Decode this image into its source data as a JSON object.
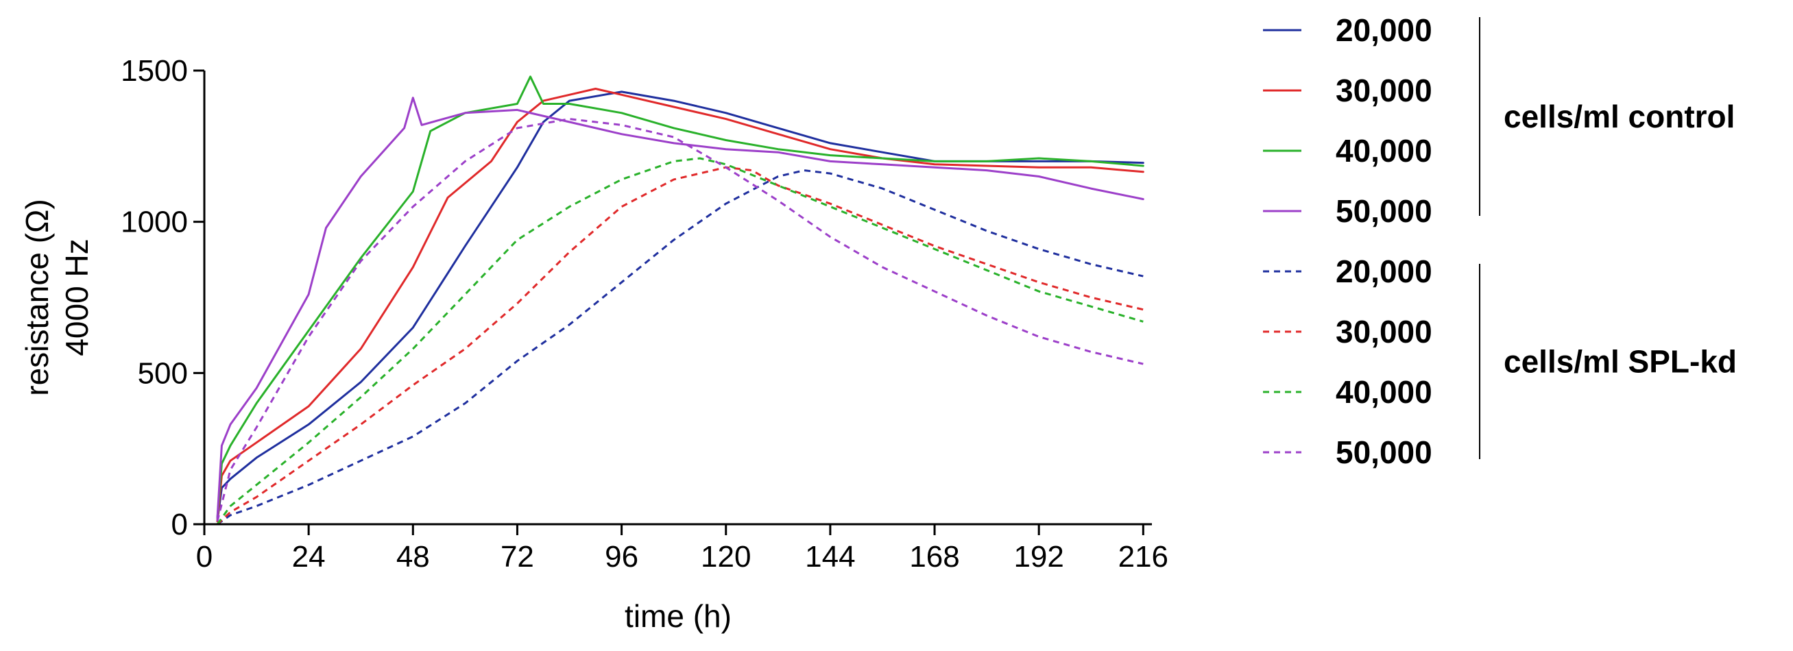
{
  "chart_data": {
    "type": "line",
    "xlabel": "time (h)",
    "ylabel": [
      "resistance (Ω)",
      "4000 Hz"
    ],
    "xlim": [
      0,
      218
    ],
    "ylim": [
      0,
      1500
    ],
    "xticks": [
      0,
      24,
      48,
      72,
      96,
      120,
      144,
      168,
      192,
      216
    ],
    "yticks": [
      0,
      500,
      1000,
      1500
    ],
    "grid": false,
    "legend_placement": "right",
    "legend_groups": [
      {
        "label": "cells/ml control",
        "series": [
          0,
          1,
          2,
          3
        ]
      },
      {
        "label": "cells/ml SPL-kd",
        "series": [
          4,
          5,
          6,
          7
        ]
      }
    ],
    "series": [
      {
        "name": "20,000",
        "color": "#1f2f9e",
        "style": "solid",
        "points": [
          [
            3,
            10
          ],
          [
            4,
            120
          ],
          [
            6,
            150
          ],
          [
            12,
            220
          ],
          [
            24,
            330
          ],
          [
            36,
            470
          ],
          [
            48,
            650
          ],
          [
            60,
            920
          ],
          [
            72,
            1180
          ],
          [
            78,
            1330
          ],
          [
            84,
            1400
          ],
          [
            96,
            1430
          ],
          [
            108,
            1400
          ],
          [
            120,
            1360
          ],
          [
            132,
            1310
          ],
          [
            144,
            1260
          ],
          [
            156,
            1230
          ],
          [
            168,
            1200
          ],
          [
            180,
            1200
          ],
          [
            192,
            1200
          ],
          [
            204,
            1200
          ],
          [
            216,
            1195
          ]
        ]
      },
      {
        "name": "30,000",
        "color": "#e0292a",
        "style": "solid",
        "points": [
          [
            3,
            10
          ],
          [
            4,
            160
          ],
          [
            6,
            210
          ],
          [
            12,
            270
          ],
          [
            24,
            390
          ],
          [
            36,
            580
          ],
          [
            48,
            850
          ],
          [
            56,
            1080
          ],
          [
            66,
            1200
          ],
          [
            72,
            1330
          ],
          [
            78,
            1400
          ],
          [
            84,
            1420
          ],
          [
            90,
            1440
          ],
          [
            96,
            1420
          ],
          [
            108,
            1380
          ],
          [
            120,
            1340
          ],
          [
            132,
            1290
          ],
          [
            144,
            1240
          ],
          [
            156,
            1210
          ],
          [
            168,
            1190
          ],
          [
            180,
            1185
          ],
          [
            192,
            1180
          ],
          [
            204,
            1180
          ],
          [
            216,
            1165
          ]
        ]
      },
      {
        "name": "40,000",
        "color": "#29b12a",
        "style": "solid",
        "points": [
          [
            3,
            20
          ],
          [
            4,
            200
          ],
          [
            6,
            260
          ],
          [
            12,
            400
          ],
          [
            24,
            640
          ],
          [
            36,
            880
          ],
          [
            48,
            1100
          ],
          [
            52,
            1300
          ],
          [
            60,
            1360
          ],
          [
            72,
            1390
          ],
          [
            75,
            1480
          ],
          [
            78,
            1390
          ],
          [
            84,
            1390
          ],
          [
            96,
            1360
          ],
          [
            108,
            1310
          ],
          [
            120,
            1270
          ],
          [
            132,
            1240
          ],
          [
            144,
            1220
          ],
          [
            156,
            1210
          ],
          [
            168,
            1200
          ],
          [
            180,
            1200
          ],
          [
            192,
            1210
          ],
          [
            204,
            1200
          ],
          [
            216,
            1185
          ]
        ]
      },
      {
        "name": "50,000",
        "color": "#9c3fc9",
        "style": "solid",
        "points": [
          [
            3,
            20
          ],
          [
            4,
            260
          ],
          [
            6,
            330
          ],
          [
            12,
            450
          ],
          [
            24,
            760
          ],
          [
            28,
            980
          ],
          [
            36,
            1150
          ],
          [
            46,
            1310
          ],
          [
            48,
            1410
          ],
          [
            50,
            1320
          ],
          [
            60,
            1360
          ],
          [
            72,
            1370
          ],
          [
            84,
            1330
          ],
          [
            96,
            1290
          ],
          [
            108,
            1260
          ],
          [
            120,
            1240
          ],
          [
            132,
            1230
          ],
          [
            144,
            1200
          ],
          [
            156,
            1190
          ],
          [
            168,
            1180
          ],
          [
            180,
            1170
          ],
          [
            192,
            1150
          ],
          [
            204,
            1110
          ],
          [
            216,
            1075
          ]
        ]
      },
      {
        "name": "20,000",
        "color": "#1f2f9e",
        "style": "dashed",
        "points": [
          [
            3,
            0
          ],
          [
            6,
            30
          ],
          [
            12,
            60
          ],
          [
            24,
            130
          ],
          [
            36,
            210
          ],
          [
            48,
            290
          ],
          [
            60,
            400
          ],
          [
            72,
            540
          ],
          [
            84,
            660
          ],
          [
            96,
            800
          ],
          [
            108,
            940
          ],
          [
            120,
            1060
          ],
          [
            132,
            1150
          ],
          [
            138,
            1170
          ],
          [
            144,
            1160
          ],
          [
            156,
            1110
          ],
          [
            168,
            1040
          ],
          [
            180,
            970
          ],
          [
            192,
            910
          ],
          [
            204,
            860
          ],
          [
            216,
            820
          ]
        ]
      },
      {
        "name": "30,000",
        "color": "#e0292a",
        "style": "dashed",
        "points": [
          [
            3,
            0
          ],
          [
            6,
            40
          ],
          [
            12,
            90
          ],
          [
            24,
            210
          ],
          [
            36,
            330
          ],
          [
            48,
            460
          ],
          [
            60,
            580
          ],
          [
            72,
            730
          ],
          [
            84,
            900
          ],
          [
            96,
            1050
          ],
          [
            108,
            1140
          ],
          [
            120,
            1180
          ],
          [
            126,
            1170
          ],
          [
            132,
            1120
          ],
          [
            144,
            1060
          ],
          [
            156,
            990
          ],
          [
            168,
            920
          ],
          [
            180,
            860
          ],
          [
            192,
            800
          ],
          [
            204,
            750
          ],
          [
            216,
            710
          ]
        ]
      },
      {
        "name": "40,000",
        "color": "#29b12a",
        "style": "dashed",
        "points": [
          [
            3,
            0
          ],
          [
            6,
            60
          ],
          [
            12,
            130
          ],
          [
            24,
            270
          ],
          [
            36,
            420
          ],
          [
            48,
            580
          ],
          [
            60,
            760
          ],
          [
            72,
            940
          ],
          [
            84,
            1050
          ],
          [
            96,
            1140
          ],
          [
            108,
            1200
          ],
          [
            114,
            1210
          ],
          [
            120,
            1190
          ],
          [
            132,
            1120
          ],
          [
            144,
            1050
          ],
          [
            156,
            980
          ],
          [
            168,
            910
          ],
          [
            180,
            840
          ],
          [
            192,
            770
          ],
          [
            204,
            720
          ],
          [
            216,
            670
          ]
        ]
      },
      {
        "name": "50,000",
        "color": "#9c3fc9",
        "style": "dashed",
        "points": [
          [
            3,
            10
          ],
          [
            6,
            180
          ],
          [
            12,
            320
          ],
          [
            24,
            620
          ],
          [
            36,
            870
          ],
          [
            48,
            1050
          ],
          [
            52,
            1100
          ],
          [
            60,
            1200
          ],
          [
            72,
            1310
          ],
          [
            84,
            1340
          ],
          [
            96,
            1320
          ],
          [
            108,
            1280
          ],
          [
            120,
            1180
          ],
          [
            132,
            1070
          ],
          [
            144,
            950
          ],
          [
            156,
            850
          ],
          [
            168,
            770
          ],
          [
            180,
            690
          ],
          [
            192,
            620
          ],
          [
            204,
            570
          ],
          [
            216,
            530
          ]
        ]
      }
    ]
  }
}
